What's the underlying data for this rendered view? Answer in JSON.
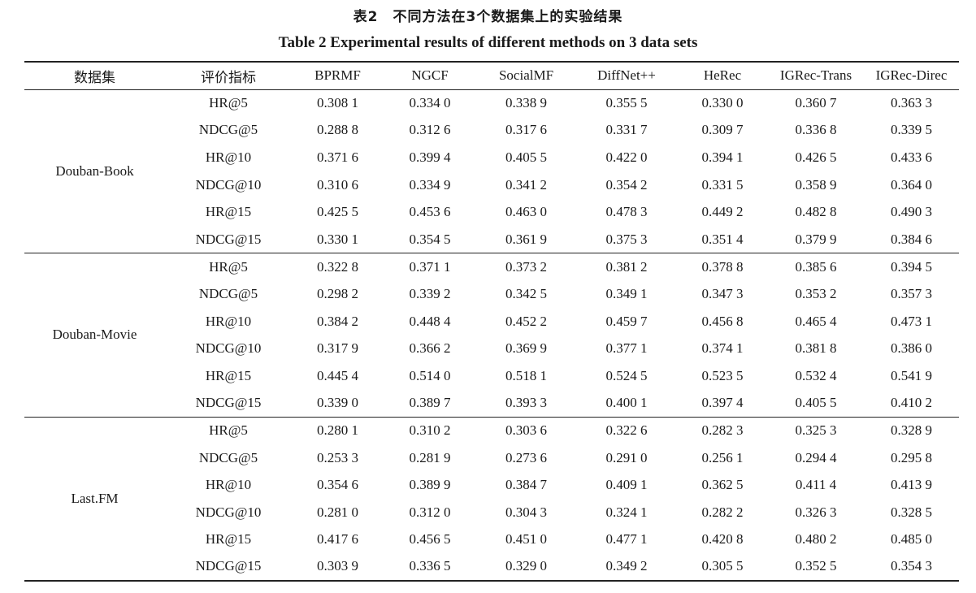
{
  "caption": {
    "cn": "表2　不同方法在3个数据集上的实验结果",
    "en": "Table 2    Experimental results of different methods on 3 data sets"
  },
  "table": {
    "headers": [
      "数据集",
      "评价指标",
      "BPRMF",
      "NGCF",
      "SocialMF",
      "DiffNet++",
      "HeRec",
      "IGRec-Trans",
      "IGRec-Direc"
    ],
    "groups": [
      {
        "dataset": "Douban-Book",
        "rows": [
          [
            "HR@5",
            "0.308 1",
            "0.334 0",
            "0.338 9",
            "0.355 5",
            "0.330 0",
            "0.360 7",
            "0.363 3"
          ],
          [
            "NDCG@5",
            "0.288 8",
            "0.312 6",
            "0.317 6",
            "0.331 7",
            "0.309 7",
            "0.336 8",
            "0.339 5"
          ],
          [
            "HR@10",
            "0.371 6",
            "0.399 4",
            "0.405 5",
            "0.422 0",
            "0.394 1",
            "0.426 5",
            "0.433 6"
          ],
          [
            "NDCG@10",
            "0.310 6",
            "0.334 9",
            "0.341 2",
            "0.354 2",
            "0.331 5",
            "0.358 9",
            "0.364 0"
          ],
          [
            "HR@15",
            "0.425 5",
            "0.453 6",
            "0.463 0",
            "0.478 3",
            "0.449 2",
            "0.482 8",
            "0.490 3"
          ],
          [
            "NDCG@15",
            "0.330 1",
            "0.354 5",
            "0.361 9",
            "0.375 3",
            "0.351 4",
            "0.379 9",
            "0.384 6"
          ]
        ]
      },
      {
        "dataset": "Douban-Movie",
        "rows": [
          [
            "HR@5",
            "0.322 8",
            "0.371 1",
            "0.373 2",
            "0.381 2",
            "0.378 8",
            "0.385 6",
            "0.394 5"
          ],
          [
            "NDCG@5",
            "0.298 2",
            "0.339 2",
            "0.342 5",
            "0.349 1",
            "0.347 3",
            "0.353 2",
            "0.357 3"
          ],
          [
            "HR@10",
            "0.384 2",
            "0.448 4",
            "0.452 2",
            "0.459 7",
            "0.456 8",
            "0.465 4",
            "0.473 1"
          ],
          [
            "NDCG@10",
            "0.317 9",
            "0.366 2",
            "0.369 9",
            "0.377 1",
            "0.374 1",
            "0.381 8",
            "0.386 0"
          ],
          [
            "HR@15",
            "0.445 4",
            "0.514 0",
            "0.518 1",
            "0.524 5",
            "0.523 5",
            "0.532 4",
            "0.541 9"
          ],
          [
            "NDCG@15",
            "0.339 0",
            "0.389 7",
            "0.393 3",
            "0.400 1",
            "0.397 4",
            "0.405 5",
            "0.410 2"
          ]
        ]
      },
      {
        "dataset": "Last.FM",
        "rows": [
          [
            "HR@5",
            "0.280 1",
            "0.310 2",
            "0.303 6",
            "0.322 6",
            "0.282 3",
            "0.325 3",
            "0.328 9"
          ],
          [
            "NDCG@5",
            "0.253 3",
            "0.281 9",
            "0.273 6",
            "0.291 0",
            "0.256 1",
            "0.294 4",
            "0.295 8"
          ],
          [
            "HR@10",
            "0.354 6",
            "0.389 9",
            "0.384 7",
            "0.409 1",
            "0.362 5",
            "0.411 4",
            "0.413 9"
          ],
          [
            "NDCG@10",
            "0.281 0",
            "0.312 0",
            "0.304 3",
            "0.324 1",
            "0.282 2",
            "0.326 3",
            "0.328 5"
          ],
          [
            "HR@15",
            "0.417 6",
            "0.456 5",
            "0.451 0",
            "0.477 1",
            "0.420 8",
            "0.480 2",
            "0.485 0"
          ],
          [
            "NDCG@15",
            "0.303 9",
            "0.336 5",
            "0.329 0",
            "0.349 2",
            "0.305 5",
            "0.352 5",
            "0.354 3"
          ]
        ]
      }
    ]
  }
}
